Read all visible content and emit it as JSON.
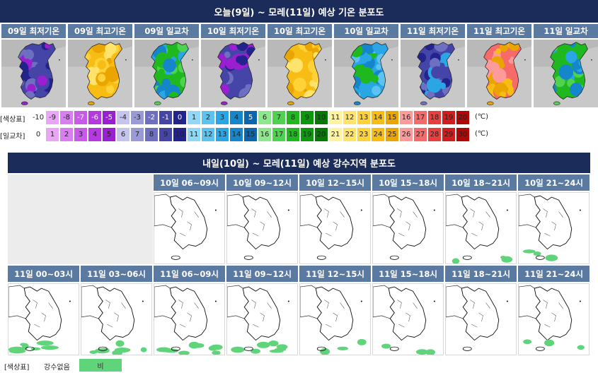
{
  "temp_section": {
    "title": "오늘(9일) ~ 모레(11일) 예상 기온 분포도",
    "maps": [
      {
        "label": "09일 최저기온",
        "scheme": "min"
      },
      {
        "label": "09일 최고기온",
        "scheme": "max"
      },
      {
        "label": "09일 일교차",
        "scheme": "range"
      },
      {
        "label": "10일 최저기온",
        "scheme": "min"
      },
      {
        "label": "10일 최고기온",
        "scheme": "max"
      },
      {
        "label": "10일 일교차",
        "scheme": "range2"
      },
      {
        "label": "11일 최저기온",
        "scheme": "min2"
      },
      {
        "label": "11일 최고기온",
        "scheme": "max2"
      },
      {
        "label": "11일 일교차",
        "scheme": "range"
      }
    ],
    "legend_temp": {
      "title": "[색상표]",
      "unit": "(℃)",
      "items": [
        {
          "v": "-10",
          "c": "#ffffff",
          "t": "#222"
        },
        {
          "v": "-9",
          "c": "#e9a6f5",
          "t": "#222"
        },
        {
          "v": "-8",
          "c": "#d97ef0",
          "t": "#222"
        },
        {
          "v": "-7",
          "c": "#c85aea",
          "t": "#fff"
        },
        {
          "v": "-6",
          "c": "#b43ae0",
          "t": "#fff"
        },
        {
          "v": "-5",
          "c": "#9a1fd0",
          "t": "#fff"
        },
        {
          "v": "-4",
          "c": "#c4c4ec",
          "t": "#222"
        },
        {
          "v": "-3",
          "c": "#9a9ad6",
          "t": "#222"
        },
        {
          "v": "-2",
          "c": "#6f6fc2",
          "t": "#fff"
        },
        {
          "v": "-1",
          "c": "#4545a8",
          "t": "#fff"
        },
        {
          "v": "0",
          "c": "#23238e",
          "t": "#fff"
        },
        {
          "v": "1",
          "c": "#8fd8f7",
          "t": "#222"
        },
        {
          "v": "2",
          "c": "#5cc2f0",
          "t": "#222"
        },
        {
          "v": "3",
          "c": "#2aa6e4",
          "t": "#222"
        },
        {
          "v": "4",
          "c": "#1686cc",
          "t": "#222"
        },
        {
          "v": "5",
          "c": "#0c66ae",
          "t": "#fff"
        },
        {
          "v": "6",
          "c": "#8de88d",
          "t": "#222"
        },
        {
          "v": "7",
          "c": "#4fd24f",
          "t": "#222"
        },
        {
          "v": "8",
          "c": "#1fb81f",
          "t": "#222"
        },
        {
          "v": "9",
          "c": "#0c980c",
          "t": "#222"
        },
        {
          "v": "10",
          "c": "#067806",
          "t": "#222"
        },
        {
          "v": "11",
          "c": "#fff3a0",
          "t": "#222"
        },
        {
          "v": "12",
          "c": "#ffe36a",
          "t": "#222"
        },
        {
          "v": "13",
          "c": "#ffd23a",
          "t": "#222"
        },
        {
          "v": "14",
          "c": "#f7bd14",
          "t": "#222"
        },
        {
          "v": "15",
          "c": "#eaa500",
          "t": "#222"
        },
        {
          "v": "16",
          "c": "#ff9a9a",
          "t": "#222"
        },
        {
          "v": "17",
          "c": "#f76a6a",
          "t": "#222"
        },
        {
          "v": "18",
          "c": "#e83e3e",
          "t": "#222"
        },
        {
          "v": "19",
          "c": "#d11d1d",
          "t": "#222"
        },
        {
          "v": "20",
          "c": "#b00606",
          "t": "#222"
        }
      ]
    },
    "legend_range": {
      "title": "[일교차]",
      "unit": "(℃)",
      "items": [
        {
          "v": "0",
          "c": "#ffffff",
          "t": "#222"
        },
        {
          "v": "1",
          "c": "#e9a6f5",
          "t": "#222"
        },
        {
          "v": "2",
          "c": "#d97ef0",
          "t": "#222"
        },
        {
          "v": "3",
          "c": "#c85aea",
          "t": "#222"
        },
        {
          "v": "4",
          "c": "#b43ae0",
          "t": "#222"
        },
        {
          "v": "5",
          "c": "#9a1fd0",
          "t": "#222"
        },
        {
          "v": "6",
          "c": "#c4c4ec",
          "t": "#222"
        },
        {
          "v": "7",
          "c": "#9a9ad6",
          "t": "#222"
        },
        {
          "v": "8",
          "c": "#6f6fc2",
          "t": "#222"
        },
        {
          "v": "9",
          "c": "#4545a8",
          "t": "#222"
        },
        {
          "v": "10",
          "c": "#23238e",
          "t": "#222"
        },
        {
          "v": "11",
          "c": "#8fd8f7",
          "t": "#222"
        },
        {
          "v": "12",
          "c": "#5cc2f0",
          "t": "#222"
        },
        {
          "v": "13",
          "c": "#2aa6e4",
          "t": "#222"
        },
        {
          "v": "14",
          "c": "#1686cc",
          "t": "#222"
        },
        {
          "v": "15",
          "c": "#0c66ae",
          "t": "#222"
        },
        {
          "v": "16",
          "c": "#8de88d",
          "t": "#222"
        },
        {
          "v": "17",
          "c": "#4fd24f",
          "t": "#222"
        },
        {
          "v": "18",
          "c": "#1fb81f",
          "t": "#222"
        },
        {
          "v": "19",
          "c": "#0c980c",
          "t": "#222"
        },
        {
          "v": "20",
          "c": "#067806",
          "t": "#222"
        },
        {
          "v": "21",
          "c": "#fff3a0",
          "t": "#222"
        },
        {
          "v": "22",
          "c": "#ffe36a",
          "t": "#222"
        },
        {
          "v": "23",
          "c": "#ffd23a",
          "t": "#222"
        },
        {
          "v": "24",
          "c": "#f7bd14",
          "t": "#222"
        },
        {
          "v": "25",
          "c": "#eaa500",
          "t": "#222"
        },
        {
          "v": "26",
          "c": "#ff9a9a",
          "t": "#222"
        },
        {
          "v": "27",
          "c": "#f76a6a",
          "t": "#222"
        },
        {
          "v": "28",
          "c": "#e83e3e",
          "t": "#222"
        },
        {
          "v": "29",
          "c": "#d11d1d",
          "t": "#222"
        },
        {
          "v": "30",
          "c": "#b00606",
          "t": "#222"
        }
      ]
    }
  },
  "precip_section": {
    "title": "내일(10일) ~ 모레(11일) 예상 강수지역 분포도",
    "rain_color": "#5fd47a",
    "maps": [
      {
        "label": "10일 06~09시",
        "rain": 0
      },
      {
        "label": "10일 09~12시",
        "rain": 0
      },
      {
        "label": "10일 12~15시",
        "rain": 0
      },
      {
        "label": "10일 15~18시",
        "rain": 0
      },
      {
        "label": "10일 18~21시",
        "rain": 1
      },
      {
        "label": "10일 21~24시",
        "rain": 1
      },
      {
        "label": "11일 00~03시",
        "rain": 2
      },
      {
        "label": "11일 03~06시",
        "rain": 2
      },
      {
        "label": "11일 06~09시",
        "rain": 2
      },
      {
        "label": "11일 09~12시",
        "rain": 2
      },
      {
        "label": "11일 12~15시",
        "rain": 1
      },
      {
        "label": "11일 15~18시",
        "rain": 1
      },
      {
        "label": "11일 18~21시",
        "rain": 0
      },
      {
        "label": "11일 21~24시",
        "rain": 1
      }
    ],
    "legend": {
      "title": "[색상표]",
      "none_label": "강수없음",
      "rain_label": "비"
    }
  }
}
